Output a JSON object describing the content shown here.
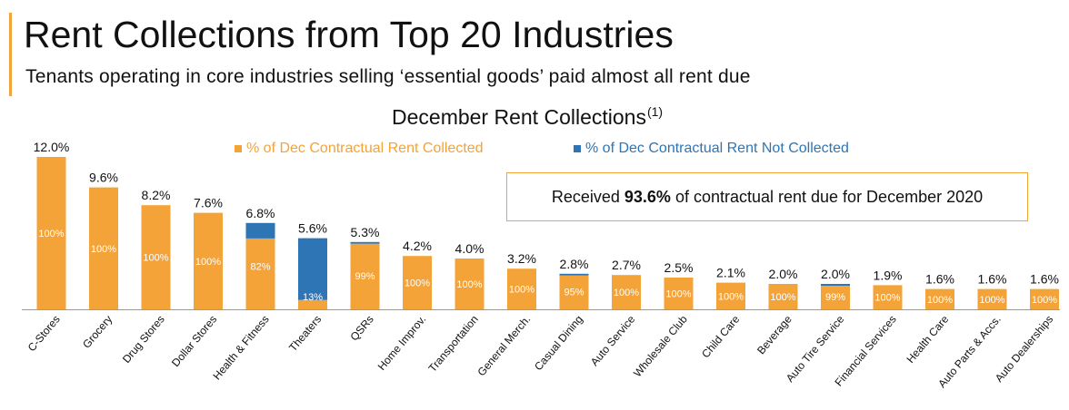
{
  "header": {
    "title": "Rent Collections from Top 20 Industries",
    "subtitle": "Tenants operating in core industries selling ‘essential goods’ paid almost all rent due"
  },
  "callout": {
    "prefix": "Received",
    "value": "93.6%",
    "suffix": "of contractual rent due for December 2020"
  },
  "chart_data": {
    "type": "bar",
    "title": "December Rent Collections",
    "title_superscript": "(1)",
    "stacked": true,
    "legend_placement": "top",
    "grid": false,
    "ylim": [
      0,
      12.0
    ],
    "categories": [
      "C-Stores",
      "Grocery",
      "Drug Stores",
      "Dollar Stores",
      "Health & Fitness",
      "Theaters",
      "QSRs",
      "Home Improv.",
      "Transportation",
      "General Merch.",
      "Casual Dining",
      "Auto Service",
      "Wholesale Club",
      "Child Care",
      "Beverage",
      "Auto Tire Service",
      "Financial Services",
      "Health Care",
      "Auto Parts & Accs.",
      "Auto Dealerships"
    ],
    "totals": [
      12.0,
      9.6,
      8.2,
      7.6,
      6.8,
      5.6,
      5.3,
      4.2,
      4.0,
      3.2,
      2.8,
      2.7,
      2.5,
      2.1,
      2.0,
      2.0,
      1.9,
      1.6,
      1.6,
      1.6
    ],
    "total_labels": [
      "12.0%",
      "9.6%",
      "8.2%",
      "7.6%",
      "6.8%",
      "5.6%",
      "5.3%",
      "4.2%",
      "4.0%",
      "3.2%",
      "2.8%",
      "2.7%",
      "2.5%",
      "2.1%",
      "2.0%",
      "2.0%",
      "1.9%",
      "1.6%",
      "1.6%",
      "1.6%"
    ],
    "collected_pct": [
      100,
      100,
      100,
      100,
      82,
      13,
      99,
      100,
      100,
      100,
      95,
      100,
      100,
      100,
      100,
      99,
      100,
      100,
      100,
      100
    ],
    "collected_labels": [
      "100%",
      "100%",
      "100%",
      "100%",
      "82%",
      "13%",
      "99%",
      "100%",
      "100%",
      "100%",
      "95%",
      "100%",
      "100%",
      "100%",
      "100%",
      "99%",
      "100%",
      "100%",
      "100%",
      "100%"
    ],
    "series": [
      {
        "name": "% of Dec Contractual Rent Collected",
        "color": "#f4a338"
      },
      {
        "name": "% of Dec Contractual Rent Not Collected",
        "color": "#2e75b6"
      }
    ],
    "axis_color": "#9a9a9a"
  }
}
